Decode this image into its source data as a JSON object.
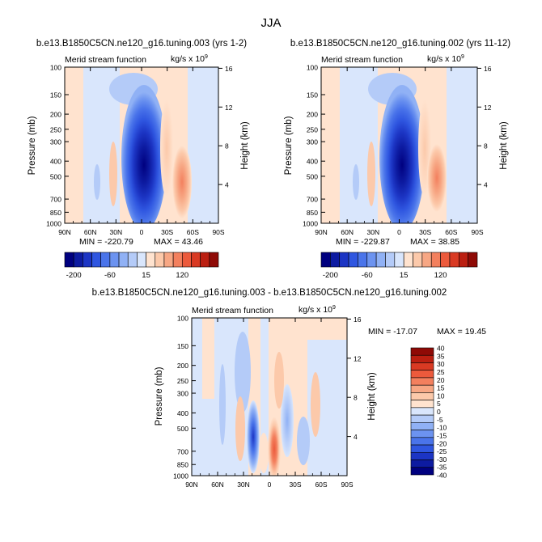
{
  "page_title": "JJA",
  "chart_data": [
    {
      "type": "contour",
      "title": "b.e13.B1850C5CN.ne120_g16.tuning.003 (yrs 1-2)",
      "subtitle_left": "Merid stream function",
      "units": "kg/s x 10",
      "units_exp": "9",
      "ylabel": "Pressure (mb)",
      "ylabel_right": "Height (km)",
      "x_ticks": [
        "90N",
        "60N",
        "30N",
        "0",
        "30S",
        "60S",
        "90S"
      ],
      "y_ticks": [
        "100",
        "150",
        "200",
        "250",
        "300",
        "400",
        "500",
        "700",
        "850",
        "1000"
      ],
      "y_values_mb": [
        100,
        150,
        200,
        250,
        300,
        400,
        500,
        700,
        850,
        1000
      ],
      "height_ticks": [
        "4",
        "8",
        "12",
        "16"
      ],
      "height_values_km": [
        4,
        8,
        12,
        16
      ],
      "min_label": "MIN = -220.79",
      "max_label": "MAX = 43.46",
      "min": -220.79,
      "max": 43.46,
      "colorbar_ticks": [
        "-200",
        "-60",
        "15",
        "120"
      ],
      "features": [
        {
          "kind": "core",
          "lat": -2,
          "p": 480,
          "value": -215
        },
        {
          "kind": "cell",
          "lat": 28,
          "p": 500,
          "value": 30
        },
        {
          "kind": "cell",
          "lat": -47,
          "p": 540,
          "value": 42
        }
      ]
    },
    {
      "type": "contour",
      "title": "b.e13.B1850C5CN.ne120_g16.tuning.002 (yrs 11-12)",
      "subtitle_left": "Merid stream function",
      "units": "kg/s x 10",
      "units_exp": "9",
      "ylabel": "Pressure (mb)",
      "ylabel_right": "Height (km)",
      "x_ticks": [
        "90N",
        "60N",
        "30N",
        "0",
        "30S",
        "60S",
        "90S"
      ],
      "y_ticks": [
        "100",
        "150",
        "200",
        "250",
        "300",
        "400",
        "500",
        "700",
        "850",
        "1000"
      ],
      "y_values_mb": [
        100,
        150,
        200,
        250,
        300,
        400,
        500,
        700,
        850,
        1000
      ],
      "height_ticks": [
        "4",
        "8",
        "12",
        "16"
      ],
      "height_values_km": [
        4,
        8,
        12,
        16
      ],
      "min_label": "MIN = -229.87",
      "max_label": "MAX = 38.85",
      "min": -229.87,
      "max": 38.85,
      "colorbar_ticks": [
        "-200",
        "-60",
        "15",
        "120"
      ],
      "features": [
        {
          "kind": "core",
          "lat": -2,
          "p": 480,
          "value": -225
        },
        {
          "kind": "cell",
          "lat": 28,
          "p": 500,
          "value": 28
        },
        {
          "kind": "cell",
          "lat": -47,
          "p": 540,
          "value": 38
        }
      ]
    },
    {
      "type": "contour",
      "title": "b.e13.B1850C5CN.ne120_g16.tuning.003 - b.e13.B1850C5CN.ne120_g16.tuning.002",
      "subtitle_left": "Merid stream function",
      "units": "kg/s x 10",
      "units_exp": "9",
      "ylabel": "Pressure (mb)",
      "ylabel_right": "Height (km)",
      "x_ticks": [
        "90N",
        "60N",
        "30N",
        "0",
        "30S",
        "60S",
        "90S"
      ],
      "y_ticks": [
        "100",
        "150",
        "200",
        "250",
        "300",
        "400",
        "500",
        "700",
        "850",
        "1000"
      ],
      "y_values_mb": [
        100,
        150,
        200,
        250,
        300,
        400,
        500,
        700,
        850,
        1000
      ],
      "height_ticks": [
        "4",
        "8",
        "12",
        "16"
      ],
      "height_values_km": [
        4,
        8,
        12,
        16
      ],
      "min_label": "MIN = -17.07",
      "max_label": "MAX = 19.45",
      "min": -17.07,
      "max": 19.45,
      "colorbar_ticks": [
        "40",
        "35",
        "30",
        "25",
        "20",
        "15",
        "10",
        "5",
        "0",
        "-5",
        "-10",
        "-15",
        "-20",
        "-25",
        "-30",
        "-35",
        "-40"
      ],
      "features": [
        {
          "kind": "cell",
          "lat": 22,
          "p": 780,
          "value": -15
        },
        {
          "kind": "cell",
          "lat": -10,
          "p": 800,
          "value": 18
        },
        {
          "kind": "cell",
          "lat": -22,
          "p": 650,
          "value": -7
        }
      ]
    }
  ],
  "colors": {
    "main_scale": [
      "#00007f",
      "#0d1ba1",
      "#1c35c4",
      "#2f56e0",
      "#4a74ea",
      "#6c93f0",
      "#90b1f5",
      "#b4cbf8",
      "#d9e6fc",
      "#ffe3cf",
      "#fcc9aa",
      "#f7a784",
      "#f3805e",
      "#ec5a3c",
      "#d93a23",
      "#bb1f11",
      "#8f0a06"
    ],
    "diff_scale_top_to_bottom": [
      "#8f0a06",
      "#bb1f11",
      "#d93a23",
      "#ec5a3c",
      "#f3805e",
      "#f7a784",
      "#fcc9aa",
      "#ffe3cf",
      "#d9e6fc",
      "#b4cbf8",
      "#90b1f5",
      "#6c93f0",
      "#4a74ea",
      "#2f56e0",
      "#1c35c4",
      "#0d1ba1",
      "#00007f"
    ]
  }
}
